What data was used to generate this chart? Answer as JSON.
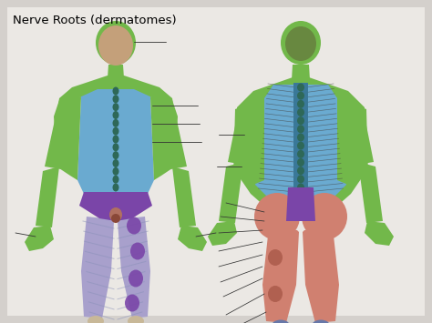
{
  "title": "Nerve Roots (dermatomes)",
  "title_fontsize": 9.5,
  "bg_color": "#d4d0cc",
  "panel_color": "#ebe8e4",
  "colors": {
    "green": "#72b84a",
    "blue": "#6aaad0",
    "purple": "#7a45a8",
    "salmon": "#d08070",
    "lavender": "#a8a0cc",
    "dark_teal": "#2e6858",
    "skin_face": "#c4a07a",
    "skin_foot": "#c8b898",
    "dark_purple": "#5a2880",
    "spine_blue": "#3a7898",
    "annot_line": "#333333",
    "foot_blue": "#6878a8"
  },
  "fig_width": 4.74,
  "fig_height": 3.55,
  "dpi": 100
}
